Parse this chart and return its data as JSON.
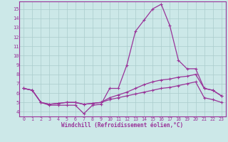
{
  "xlabel": "Windchill (Refroidissement éolien,°C)",
  "bg_color": "#cce8e8",
  "grid_color": "#aacccc",
  "line_color": "#993399",
  "xlim": [
    -0.5,
    23.5
  ],
  "ylim": [
    3.5,
    15.8
  ],
  "xticks": [
    0,
    1,
    2,
    3,
    4,
    5,
    6,
    7,
    8,
    9,
    10,
    11,
    12,
    13,
    14,
    15,
    16,
    17,
    18,
    19,
    20,
    21,
    22,
    23
  ],
  "yticks": [
    4,
    5,
    6,
    7,
    8,
    9,
    10,
    11,
    12,
    13,
    14,
    15
  ],
  "line1_x": [
    0,
    1,
    2,
    3,
    4,
    5,
    6,
    7,
    8,
    9,
    10,
    11,
    12,
    13,
    14,
    15,
    16,
    17,
    18,
    19,
    20,
    21,
    22,
    23
  ],
  "line1_y": [
    6.5,
    6.3,
    5.0,
    4.7,
    4.7,
    4.7,
    4.7,
    3.8,
    4.7,
    4.8,
    6.5,
    6.5,
    9.0,
    12.6,
    13.8,
    15.0,
    15.5,
    13.2,
    9.5,
    8.6,
    8.6,
    6.5,
    6.3,
    5.7
  ],
  "line2_x": [
    0,
    1,
    2,
    3,
    4,
    5,
    6,
    7,
    8,
    9,
    10,
    11,
    12,
    13,
    14,
    15,
    16,
    17,
    18,
    19,
    20,
    21,
    22,
    23
  ],
  "line2_y": [
    6.5,
    6.3,
    5.0,
    4.8,
    4.9,
    5.0,
    5.0,
    4.8,
    4.9,
    5.0,
    5.5,
    5.8,
    6.1,
    6.5,
    6.9,
    7.2,
    7.4,
    7.5,
    7.7,
    7.8,
    8.0,
    6.5,
    6.3,
    5.7
  ],
  "line3_x": [
    0,
    1,
    2,
    3,
    4,
    5,
    6,
    7,
    8,
    9,
    10,
    11,
    12,
    13,
    14,
    15,
    16,
    17,
    18,
    19,
    20,
    21,
    22,
    23
  ],
  "line3_y": [
    6.5,
    6.3,
    5.0,
    4.8,
    4.9,
    5.0,
    5.0,
    4.8,
    4.9,
    5.0,
    5.3,
    5.5,
    5.7,
    5.9,
    6.1,
    6.3,
    6.5,
    6.6,
    6.8,
    7.0,
    7.2,
    5.5,
    5.3,
    5.0
  ]
}
